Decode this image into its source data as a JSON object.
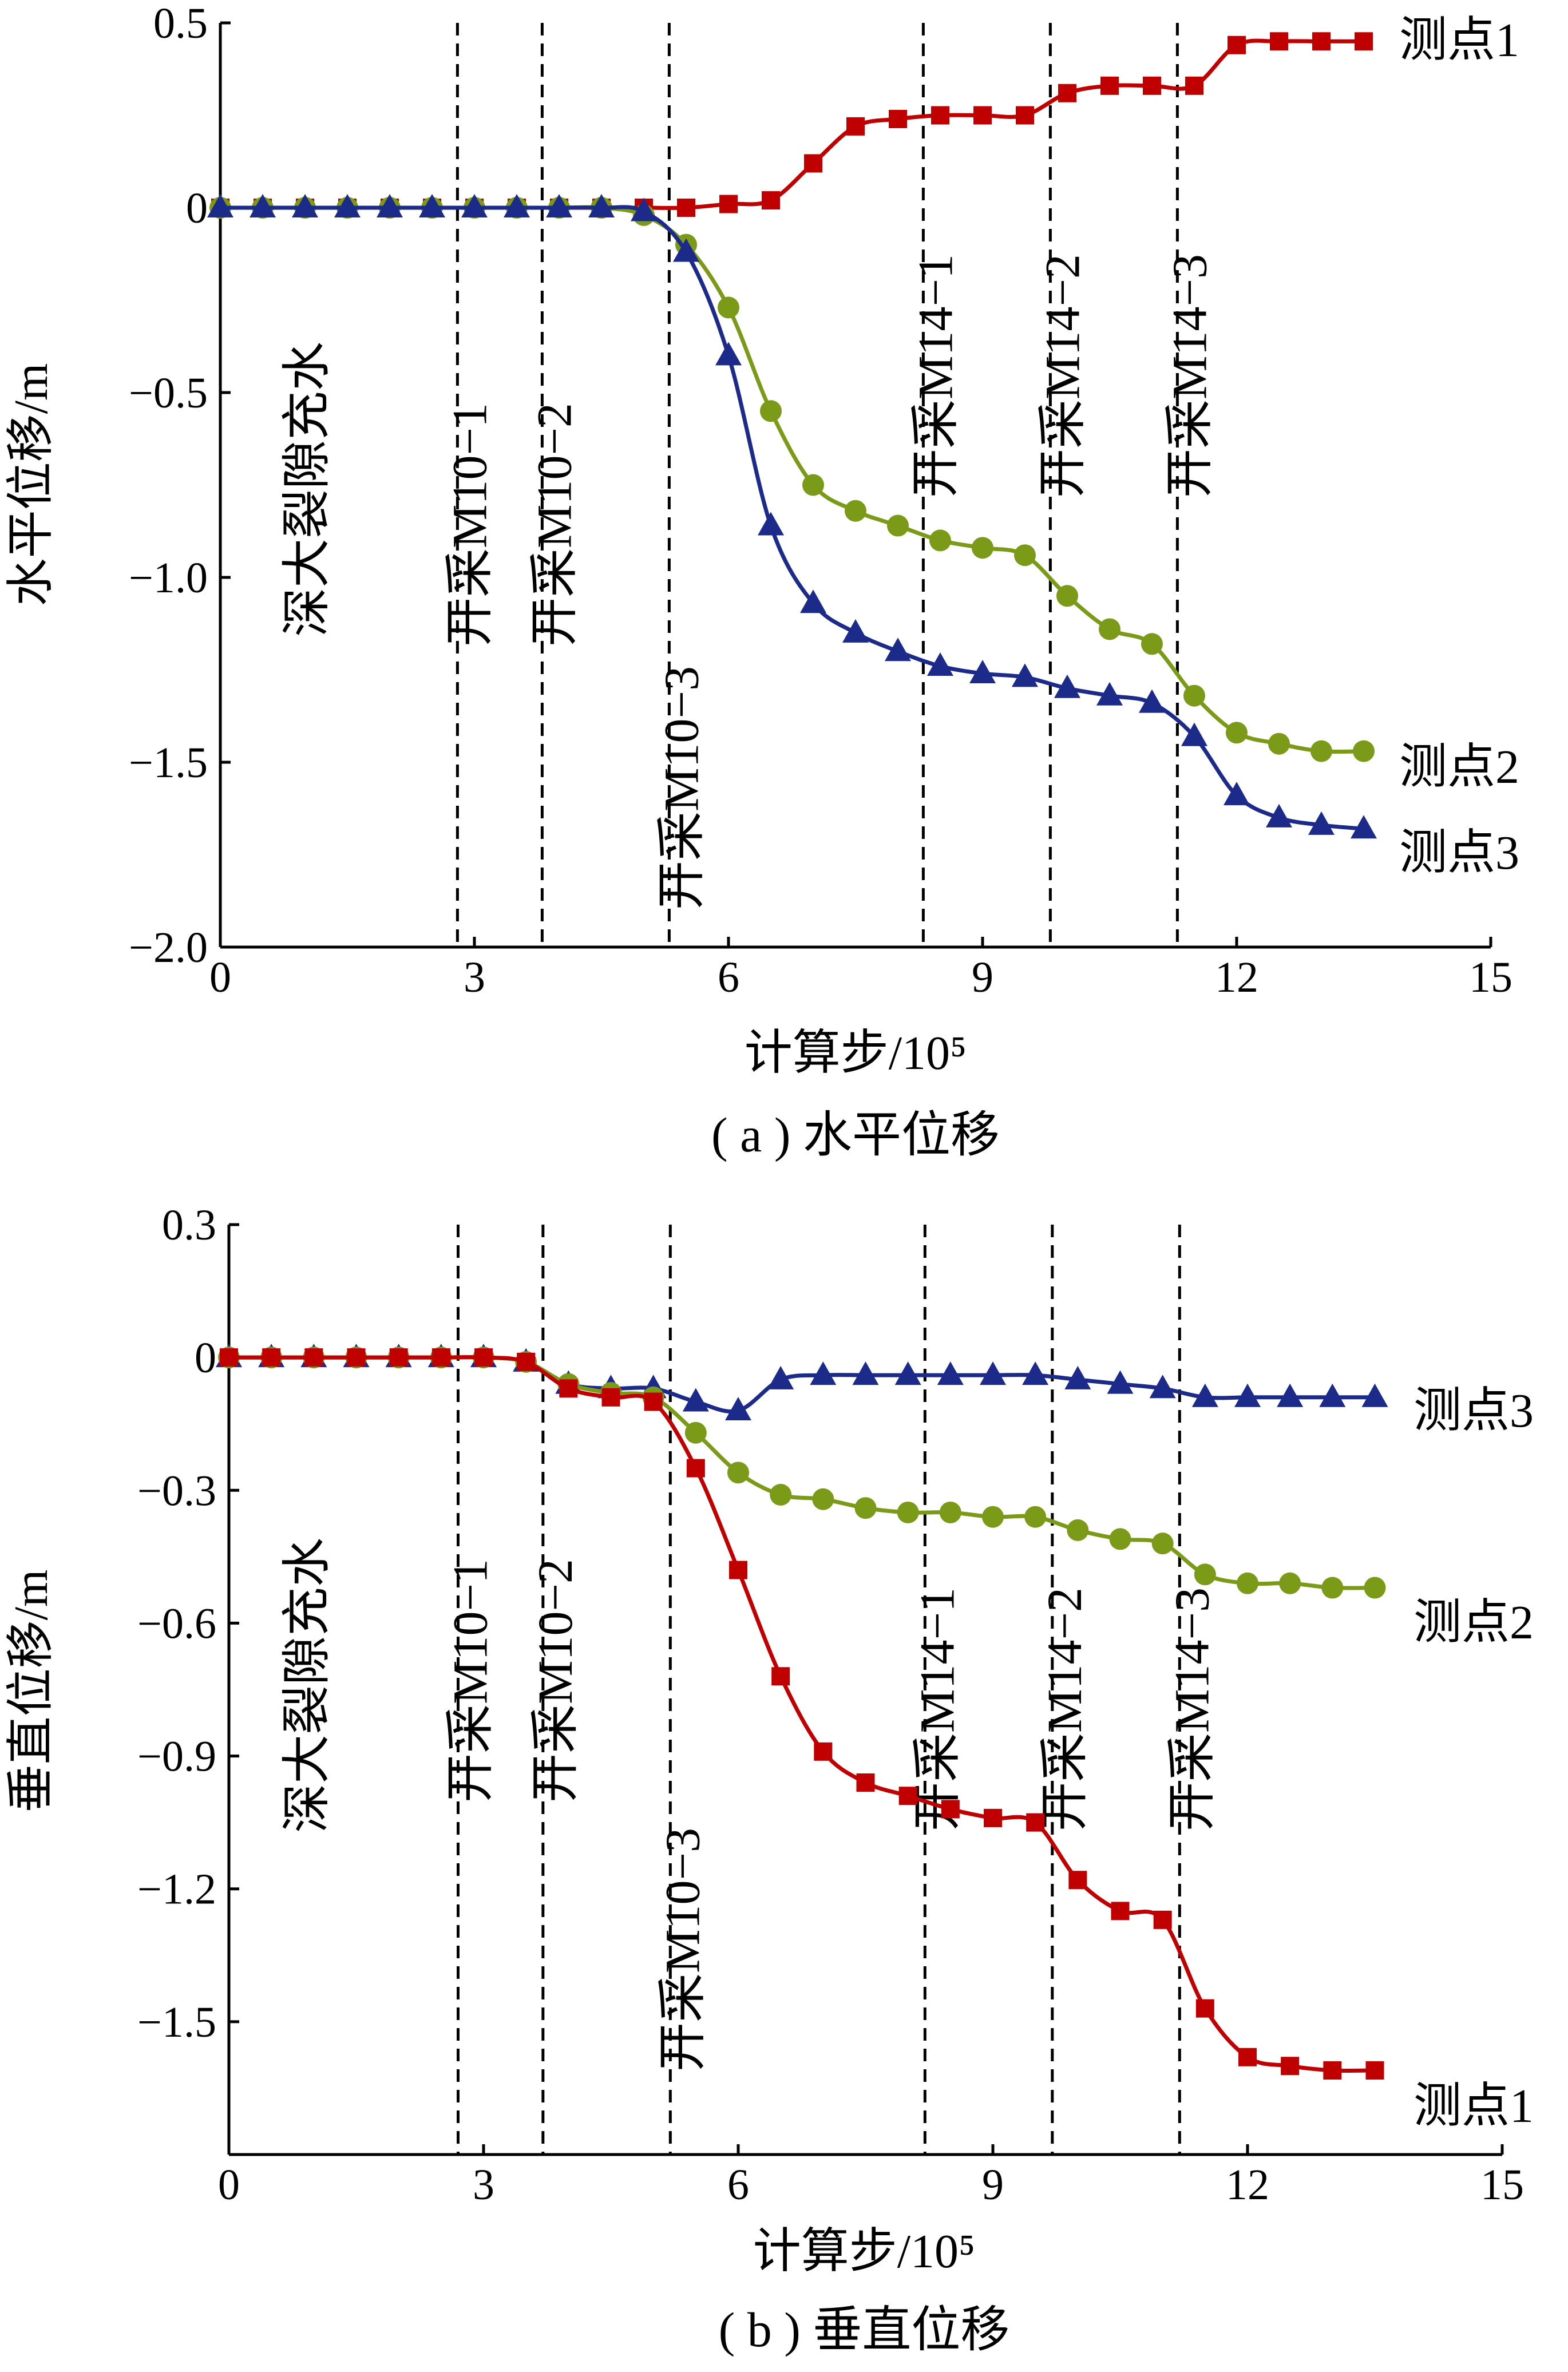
{
  "chart_data": [
    {
      "type": "line",
      "caption": "( a ) 水平位移",
      "xlabel": "计算步/10⁵",
      "ylabel": "水平位移/m",
      "xlim": [
        0,
        15
      ],
      "ylim": [
        -2.0,
        0.5
      ],
      "x_ticks": [
        0,
        3,
        6,
        9,
        12,
        15
      ],
      "x_tick_labels": [
        "0",
        "3",
        "6",
        "9",
        "12",
        "15"
      ],
      "y_ticks": [
        0.5,
        0,
        -0.5,
        -1.0,
        -1.5,
        -2.0
      ],
      "y_tick_labels": [
        "0.5",
        "0",
        "−0.5",
        "−1.0",
        "−1.5",
        "−2.0"
      ],
      "phase_lines": [
        {
          "x": 0,
          "label": "深大裂隙充水"
        },
        {
          "x": 2.8,
          "label": "开采M10−1"
        },
        {
          "x": 3.8,
          "label": "开采M10−2"
        },
        {
          "x": 5.3,
          "label": "开采M10−3"
        },
        {
          "x": 8.3,
          "label": "开采M14−1"
        },
        {
          "x": 9.8,
          "label": "开采M14−2"
        },
        {
          "x": 11.3,
          "label": "开采M14−3"
        }
      ],
      "series": [
        {
          "name": "测点1",
          "color": "#c00000",
          "marker": "square",
          "x": [
            0,
            0.5,
            1,
            1.5,
            2,
            2.5,
            3,
            3.5,
            4,
            4.5,
            5,
            5.5,
            6,
            6.5,
            7,
            7.5,
            8,
            8.5,
            9,
            9.5,
            10,
            10.5,
            11,
            11.5,
            12,
            12.5,
            13,
            13.5
          ],
          "y": [
            0,
            0,
            0,
            0,
            0,
            0,
            0,
            0,
            0,
            0,
            0,
            0,
            0.01,
            0.02,
            0.12,
            0.22,
            0.24,
            0.25,
            0.25,
            0.25,
            0.31,
            0.33,
            0.33,
            0.33,
            0.44,
            0.45,
            0.45,
            0.45
          ]
        },
        {
          "name": "测点2",
          "color": "#7a9a18",
          "marker": "circle",
          "x": [
            0,
            0.5,
            1,
            1.5,
            2,
            2.5,
            3,
            3.5,
            4,
            4.5,
            5,
            5.5,
            6,
            6.5,
            7,
            7.5,
            8,
            8.5,
            9,
            9.5,
            10,
            10.5,
            11,
            11.5,
            12,
            12.5,
            13,
            13.5
          ],
          "y": [
            0,
            0,
            0,
            0,
            0,
            0,
            0,
            0,
            0,
            0,
            -0.02,
            -0.1,
            -0.27,
            -0.55,
            -0.75,
            -0.82,
            -0.86,
            -0.9,
            -0.92,
            -0.94,
            -1.05,
            -1.14,
            -1.18,
            -1.32,
            -1.42,
            -1.45,
            -1.47,
            -1.47
          ]
        },
        {
          "name": "测点3",
          "color": "#1c2a8a",
          "marker": "triangle",
          "x": [
            0,
            0.5,
            1,
            1.5,
            2,
            2.5,
            3,
            3.5,
            4,
            4.5,
            5,
            5.5,
            6,
            6.5,
            7,
            7.5,
            8,
            8.5,
            9,
            9.5,
            10,
            10.5,
            11,
            11.5,
            12,
            12.5,
            13,
            13.5
          ],
          "y": [
            0,
            0,
            0,
            0,
            0,
            0,
            0,
            0,
            0,
            0,
            -0.01,
            -0.12,
            -0.4,
            -0.86,
            -1.07,
            -1.15,
            -1.2,
            -1.24,
            -1.26,
            -1.27,
            -1.3,
            -1.32,
            -1.34,
            -1.43,
            -1.59,
            -1.65,
            -1.67,
            -1.68
          ]
        }
      ]
    },
    {
      "type": "line",
      "caption": "( b ) 垂直位移",
      "xlabel": "计算步/10⁵",
      "ylabel": "垂直位移/m",
      "xlim": [
        0,
        15
      ],
      "ylim": [
        -1.8,
        0.3
      ],
      "x_ticks": [
        0,
        3,
        6,
        9,
        12,
        15
      ],
      "x_tick_labels": [
        "0",
        "3",
        "6",
        "9",
        "12",
        "15"
      ],
      "y_ticks": [
        0.3,
        0,
        -0.3,
        -0.6,
        -0.9,
        -1.2,
        -1.5
      ],
      "y_tick_labels": [
        "0.3",
        "0",
        "−0.3",
        "−0.6",
        "−0.9",
        "−1.2",
        "−1.5"
      ],
      "phase_lines": [
        {
          "x": 0,
          "label": "深大裂隙充水"
        },
        {
          "x": 2.7,
          "label": "开采M10−1"
        },
        {
          "x": 3.7,
          "label": "开采M10−2"
        },
        {
          "x": 5.2,
          "label": "开采M10−3"
        },
        {
          "x": 8.2,
          "label": "开采M14−1"
        },
        {
          "x": 9.7,
          "label": "开采M14−2"
        },
        {
          "x": 11.2,
          "label": "开采M14−3"
        }
      ],
      "series": [
        {
          "name": "测点3",
          "color": "#1c2a8a",
          "marker": "triangle",
          "x": [
            0,
            0.5,
            1,
            1.5,
            2,
            2.5,
            3,
            3.5,
            4,
            4.5,
            5,
            5.5,
            6,
            6.5,
            7,
            7.5,
            8,
            8.5,
            9,
            9.5,
            10,
            10.5,
            11,
            11.5,
            12,
            12.5,
            13,
            13.5
          ],
          "y": [
            0,
            0,
            0,
            0,
            0,
            0,
            0,
            -0.01,
            -0.06,
            -0.07,
            -0.07,
            -0.1,
            -0.12,
            -0.05,
            -0.04,
            -0.04,
            -0.04,
            -0.04,
            -0.04,
            -0.04,
            -0.05,
            -0.06,
            -0.07,
            -0.09,
            -0.09,
            -0.09,
            -0.09,
            -0.09
          ]
        },
        {
          "name": "测点2",
          "color": "#7a9a18",
          "marker": "circle",
          "x": [
            0,
            0.5,
            1,
            1.5,
            2,
            2.5,
            3,
            3.5,
            4,
            4.5,
            5,
            5.5,
            6,
            6.5,
            7,
            7.5,
            8,
            8.5,
            9,
            9.5,
            10,
            10.5,
            11,
            11.5,
            12,
            12.5,
            13,
            13.5
          ],
          "y": [
            0,
            0,
            0,
            0,
            0,
            0,
            0,
            -0.01,
            -0.06,
            -0.08,
            -0.09,
            -0.17,
            -0.26,
            -0.31,
            -0.32,
            -0.34,
            -0.35,
            -0.35,
            -0.36,
            -0.36,
            -0.39,
            -0.41,
            -0.42,
            -0.49,
            -0.51,
            -0.51,
            -0.52,
            -0.52
          ]
        },
        {
          "name": "测点1",
          "color": "#c00000",
          "marker": "square",
          "x": [
            0,
            0.5,
            1,
            1.5,
            2,
            2.5,
            3,
            3.5,
            4,
            4.5,
            5,
            5.5,
            6,
            6.5,
            7,
            7.5,
            8,
            8.5,
            9,
            9.5,
            10,
            10.5,
            11,
            11.5,
            12,
            12.5,
            13,
            13.5
          ],
          "y": [
            0,
            0,
            0,
            0,
            0,
            0,
            0,
            -0.01,
            -0.07,
            -0.09,
            -0.1,
            -0.25,
            -0.48,
            -0.72,
            -0.89,
            -0.96,
            -0.99,
            -1.02,
            -1.04,
            -1.05,
            -1.18,
            -1.25,
            -1.27,
            -1.47,
            -1.58,
            -1.6,
            -1.61,
            -1.61
          ]
        }
      ]
    }
  ]
}
